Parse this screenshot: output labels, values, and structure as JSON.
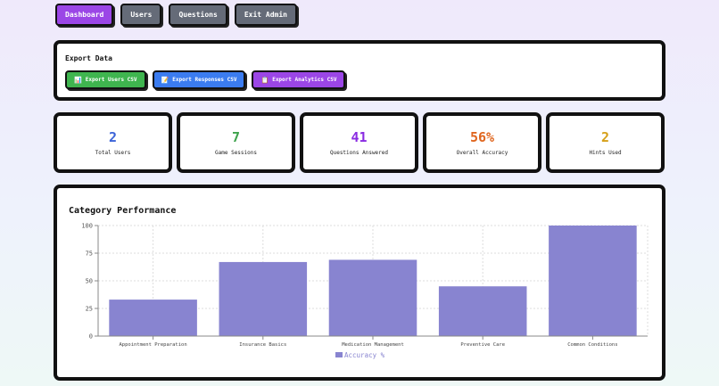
{
  "nav": {
    "items": [
      {
        "label": "Dashboard",
        "active": true
      },
      {
        "label": "Users",
        "active": false
      },
      {
        "label": "Questions",
        "active": false
      },
      {
        "label": "Exit Admin",
        "active": false
      }
    ]
  },
  "export": {
    "title": "Export Data",
    "buttons": [
      {
        "icon": "bar-chart-icon",
        "glyph": "📊",
        "label": "Export Users CSV",
        "color": "#3fb54f"
      },
      {
        "icon": "memo-icon",
        "glyph": "📝",
        "label": "Export Responses CSV",
        "color": "#3b7cf0"
      },
      {
        "icon": "clipboard-icon",
        "glyph": "📋",
        "label": "Export Analytics CSV",
        "color": "#9b46e6"
      }
    ]
  },
  "stats": [
    {
      "value": "2",
      "label": "Total Users",
      "color": "#3b63d8"
    },
    {
      "value": "7",
      "label": "Game Sessions",
      "color": "#3fa34d"
    },
    {
      "value": "41",
      "label": "Questions Answered",
      "color": "#8a2be2"
    },
    {
      "value": "56%",
      "label": "Overall Accuracy",
      "color": "#e0661f"
    },
    {
      "value": "2",
      "label": "Hints Used",
      "color": "#d6a019"
    }
  ],
  "chart": {
    "title": "Category Performance",
    "bar_color": "#8884d0"
  },
  "chart_data": {
    "type": "bar",
    "title": "Category Performance",
    "categories": [
      "Appointment Preparation",
      "Insurance Basics",
      "Medication Management",
      "Preventive Care",
      "Common Conditions"
    ],
    "series": [
      {
        "name": "Accuracy %",
        "values": [
          33,
          67,
          69,
          45,
          100
        ]
      }
    ],
    "xlabel": "",
    "ylabel": "",
    "ylim": [
      0,
      100
    ],
    "yticks": [
      0,
      25,
      50,
      75,
      100
    ],
    "grid": true,
    "legend_position": "bottom"
  }
}
